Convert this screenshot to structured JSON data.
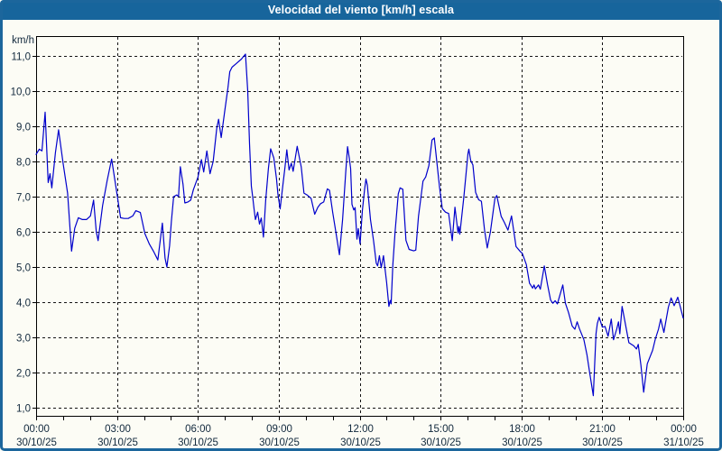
{
  "window": {
    "title": "Velocidad del viento [km/h] escala"
  },
  "colors": {
    "titlebar": "#17659c",
    "window_border": "#1c669c",
    "background": "#fcfcf5",
    "line": "#0000cc",
    "grid": "#141414",
    "axis": "#000000",
    "label_text": "#12293d",
    "title_text": "#ffffff"
  },
  "chart_data": {
    "type": "line",
    "title": "Velocidad del viento [km/h] escala",
    "xlabel": "",
    "ylabel": "km/h",
    "ylim": [
      1,
      11
    ],
    "x_range_hours": [
      0,
      24
    ],
    "grid": "dashed",
    "legend": "none",
    "y_axis": {
      "unit_label": "km/h",
      "ticks": [
        {
          "v": 11,
          "label": "11,0"
        },
        {
          "v": 10,
          "label": "10,0"
        },
        {
          "v": 9,
          "label": "9,0"
        },
        {
          "v": 8,
          "label": "8,0"
        },
        {
          "v": 7,
          "label": "7,0"
        },
        {
          "v": 6,
          "label": "6,0"
        },
        {
          "v": 5,
          "label": "5,0"
        },
        {
          "v": 4,
          "label": "4,0"
        },
        {
          "v": 3,
          "label": "3,0"
        },
        {
          "v": 2,
          "label": "2,0"
        },
        {
          "v": 1,
          "label": "1,0"
        }
      ]
    },
    "x_axis": {
      "minor_tick_every_hours": 1,
      "ticks": [
        {
          "h": 0,
          "time": "00:00",
          "date": "30/10/25"
        },
        {
          "h": 3,
          "time": "03:00",
          "date": "30/10/25"
        },
        {
          "h": 6,
          "time": "06:00",
          "date": "30/10/25"
        },
        {
          "h": 9,
          "time": "09:00",
          "date": "30/10/25"
        },
        {
          "h": 12,
          "time": "12:00",
          "date": "30/10/25"
        },
        {
          "h": 15,
          "time": "15:00",
          "date": "30/10/25"
        },
        {
          "h": 18,
          "time": "18:00",
          "date": "30/10/25"
        },
        {
          "h": 21,
          "time": "21:00",
          "date": "30/10/25"
        },
        {
          "h": 24,
          "time": "00:00",
          "date": "31/10/25"
        }
      ]
    },
    "series": [
      {
        "name": "Velocidad del viento",
        "color": "#0000cc",
        "points_format": "[minutes_since_00:00, km/h]",
        "points": [
          [
            0,
            8.2
          ],
          [
            7,
            8.35
          ],
          [
            13,
            8.3
          ],
          [
            20,
            9.4
          ],
          [
            27,
            7.4
          ],
          [
            31,
            7.65
          ],
          [
            35,
            7.25
          ],
          [
            43,
            8.25
          ],
          [
            50,
            8.9
          ],
          [
            60,
            7.95
          ],
          [
            70,
            7.1
          ],
          [
            79,
            5.45
          ],
          [
            86,
            6.1
          ],
          [
            94,
            6.4
          ],
          [
            103,
            6.35
          ],
          [
            112,
            6.35
          ],
          [
            121,
            6.45
          ],
          [
            128,
            6.9
          ],
          [
            134,
            6.0
          ],
          [
            138,
            5.75
          ],
          [
            148,
            6.75
          ],
          [
            158,
            7.45
          ],
          [
            168,
            8.07
          ],
          [
            180,
            7.08
          ],
          [
            188,
            6.4
          ],
          [
            196,
            6.38
          ],
          [
            205,
            6.38
          ],
          [
            215,
            6.45
          ],
          [
            222,
            6.6
          ],
          [
            232,
            6.55
          ],
          [
            242,
            5.95
          ],
          [
            252,
            5.65
          ],
          [
            261,
            5.45
          ],
          [
            271,
            5.2
          ],
          [
            281,
            6.25
          ],
          [
            287,
            5.25
          ],
          [
            291,
            5.0
          ],
          [
            297,
            5.6
          ],
          [
            301,
            6.3
          ],
          [
            306,
            7.0
          ],
          [
            313,
            7.05
          ],
          [
            317,
            7.0
          ],
          [
            321,
            7.85
          ],
          [
            327,
            7.35
          ],
          [
            331,
            6.82
          ],
          [
            338,
            6.85
          ],
          [
            344,
            6.9
          ],
          [
            350,
            7.2
          ],
          [
            360,
            7.55
          ],
          [
            368,
            8.05
          ],
          [
            373,
            7.7
          ],
          [
            380,
            8.3
          ],
          [
            387,
            7.65
          ],
          [
            394,
            8.0
          ],
          [
            402,
            8.95
          ],
          [
            406,
            9.2
          ],
          [
            412,
            8.68
          ],
          [
            420,
            9.45
          ],
          [
            427,
            10.1
          ],
          [
            431,
            10.55
          ],
          [
            436,
            10.68
          ],
          [
            446,
            10.79
          ],
          [
            457,
            10.91
          ],
          [
            466,
            11.05
          ],
          [
            471,
            10.0
          ],
          [
            475,
            8.5
          ],
          [
            479,
            7.3
          ],
          [
            482,
            6.99
          ],
          [
            485,
            6.65
          ],
          [
            488,
            6.35
          ],
          [
            493,
            6.56
          ],
          [
            497,
            6.22
          ],
          [
            501,
            6.39
          ],
          [
            506,
            5.85
          ],
          [
            511,
            6.9
          ],
          [
            517,
            7.8
          ],
          [
            522,
            8.36
          ],
          [
            529,
            8.1
          ],
          [
            535,
            7.5
          ],
          [
            538,
            7.08
          ],
          [
            543,
            6.65
          ],
          [
            549,
            7.32
          ],
          [
            554,
            7.84
          ],
          [
            558,
            8.33
          ],
          [
            563,
            7.76
          ],
          [
            568,
            7.95
          ],
          [
            572,
            7.72
          ],
          [
            581,
            8.43
          ],
          [
            590,
            7.84
          ],
          [
            596,
            7.1
          ],
          [
            603,
            7.05
          ],
          [
            612,
            6.95
          ],
          [
            620,
            6.5
          ],
          [
            627,
            6.7
          ],
          [
            633,
            6.8
          ],
          [
            640,
            6.85
          ],
          [
            648,
            7.22
          ],
          [
            653,
            7.18
          ],
          [
            660,
            6.56
          ],
          [
            667,
            6.0
          ],
          [
            675,
            5.35
          ],
          [
            682,
            6.35
          ],
          [
            689,
            7.7
          ],
          [
            693,
            8.42
          ],
          [
            697,
            8.1
          ],
          [
            700,
            7.8
          ],
          [
            703,
            6.78
          ],
          [
            707,
            6.62
          ],
          [
            710,
            6.69
          ],
          [
            714,
            5.79
          ],
          [
            717,
            6.09
          ],
          [
            721,
            5.66
          ],
          [
            726,
            6.6
          ],
          [
            731,
            7.21
          ],
          [
            734,
            7.5
          ],
          [
            737,
            7.33
          ],
          [
            744,
            6.35
          ],
          [
            751,
            5.75
          ],
          [
            757,
            5.11
          ],
          [
            760,
            5.03
          ],
          [
            764,
            5.32
          ],
          [
            768,
            4.98
          ],
          [
            773,
            5.32
          ],
          [
            780,
            4.56
          ],
          [
            785,
            3.88
          ],
          [
            788,
            4.05
          ],
          [
            790,
            3.95
          ],
          [
            794,
            5.07
          ],
          [
            799,
            6.01
          ],
          [
            806,
            7.08
          ],
          [
            810,
            7.25
          ],
          [
            816,
            7.21
          ],
          [
            823,
            5.76
          ],
          [
            830,
            5.5
          ],
          [
            840,
            5.46
          ],
          [
            845,
            5.48
          ],
          [
            851,
            6.44
          ],
          [
            861,
            7.44
          ],
          [
            867,
            7.56
          ],
          [
            874,
            7.88
          ],
          [
            881,
            8.61
          ],
          [
            886,
            8.67
          ],
          [
            892,
            7.97
          ],
          [
            898,
            7.25
          ],
          [
            904,
            6.66
          ],
          [
            911,
            6.56
          ],
          [
            918,
            6.52
          ],
          [
            926,
            5.75
          ],
          [
            932,
            6.7
          ],
          [
            939,
            5.97
          ],
          [
            941,
            6.15
          ],
          [
            943,
            5.93
          ],
          [
            952,
            7.0
          ],
          [
            961,
            8.22
          ],
          [
            963,
            8.35
          ],
          [
            967,
            8.03
          ],
          [
            972,
            7.9
          ],
          [
            978,
            7.12
          ],
          [
            985,
            6.91
          ],
          [
            991,
            6.87
          ],
          [
            998,
            6.05
          ],
          [
            1004,
            5.54
          ],
          [
            1011,
            6.0
          ],
          [
            1021,
            6.95
          ],
          [
            1025,
            7.03
          ],
          [
            1035,
            6.44
          ],
          [
            1042,
            6.27
          ],
          [
            1050,
            6.05
          ],
          [
            1058,
            6.45
          ],
          [
            1068,
            5.58
          ],
          [
            1078,
            5.43
          ],
          [
            1082,
            5.39
          ],
          [
            1091,
            5.07
          ],
          [
            1098,
            4.54
          ],
          [
            1105,
            4.4
          ],
          [
            1108,
            4.49
          ],
          [
            1111,
            4.38
          ],
          [
            1118,
            4.49
          ],
          [
            1122,
            4.37
          ],
          [
            1131,
            5.03
          ],
          [
            1138,
            4.51
          ],
          [
            1145,
            4.06
          ],
          [
            1150,
            3.97
          ],
          [
            1155,
            4.04
          ],
          [
            1160,
            3.95
          ],
          [
            1172,
            4.49
          ],
          [
            1178,
            3.97
          ],
          [
            1185,
            3.7
          ],
          [
            1193,
            3.32
          ],
          [
            1199,
            3.23
          ],
          [
            1204,
            3.44
          ],
          [
            1209,
            3.25
          ],
          [
            1219,
            2.93
          ],
          [
            1226,
            2.5
          ],
          [
            1232,
            1.99
          ],
          [
            1240,
            1.34
          ],
          [
            1246,
            3.1
          ],
          [
            1249,
            3.4
          ],
          [
            1253,
            3.57
          ],
          [
            1260,
            3.29
          ],
          [
            1266,
            3.31
          ],
          [
            1273,
            3.03
          ],
          [
            1280,
            3.52
          ],
          [
            1285,
            2.93
          ],
          [
            1292,
            3.23
          ],
          [
            1296,
            3.44
          ],
          [
            1299,
            3.1
          ],
          [
            1304,
            3.88
          ],
          [
            1311,
            3.4
          ],
          [
            1319,
            2.85
          ],
          [
            1330,
            2.76
          ],
          [
            1336,
            2.67
          ],
          [
            1340,
            2.8
          ],
          [
            1346,
            2.2
          ],
          [
            1352,
            1.44
          ],
          [
            1360,
            2.25
          ],
          [
            1372,
            2.63
          ],
          [
            1378,
            2.95
          ],
          [
            1385,
            3.23
          ],
          [
            1390,
            3.52
          ],
          [
            1397,
            3.14
          ],
          [
            1407,
            3.86
          ],
          [
            1413,
            4.12
          ],
          [
            1420,
            3.9
          ],
          [
            1428,
            4.14
          ],
          [
            1440,
            3.55
          ]
        ]
      }
    ]
  }
}
